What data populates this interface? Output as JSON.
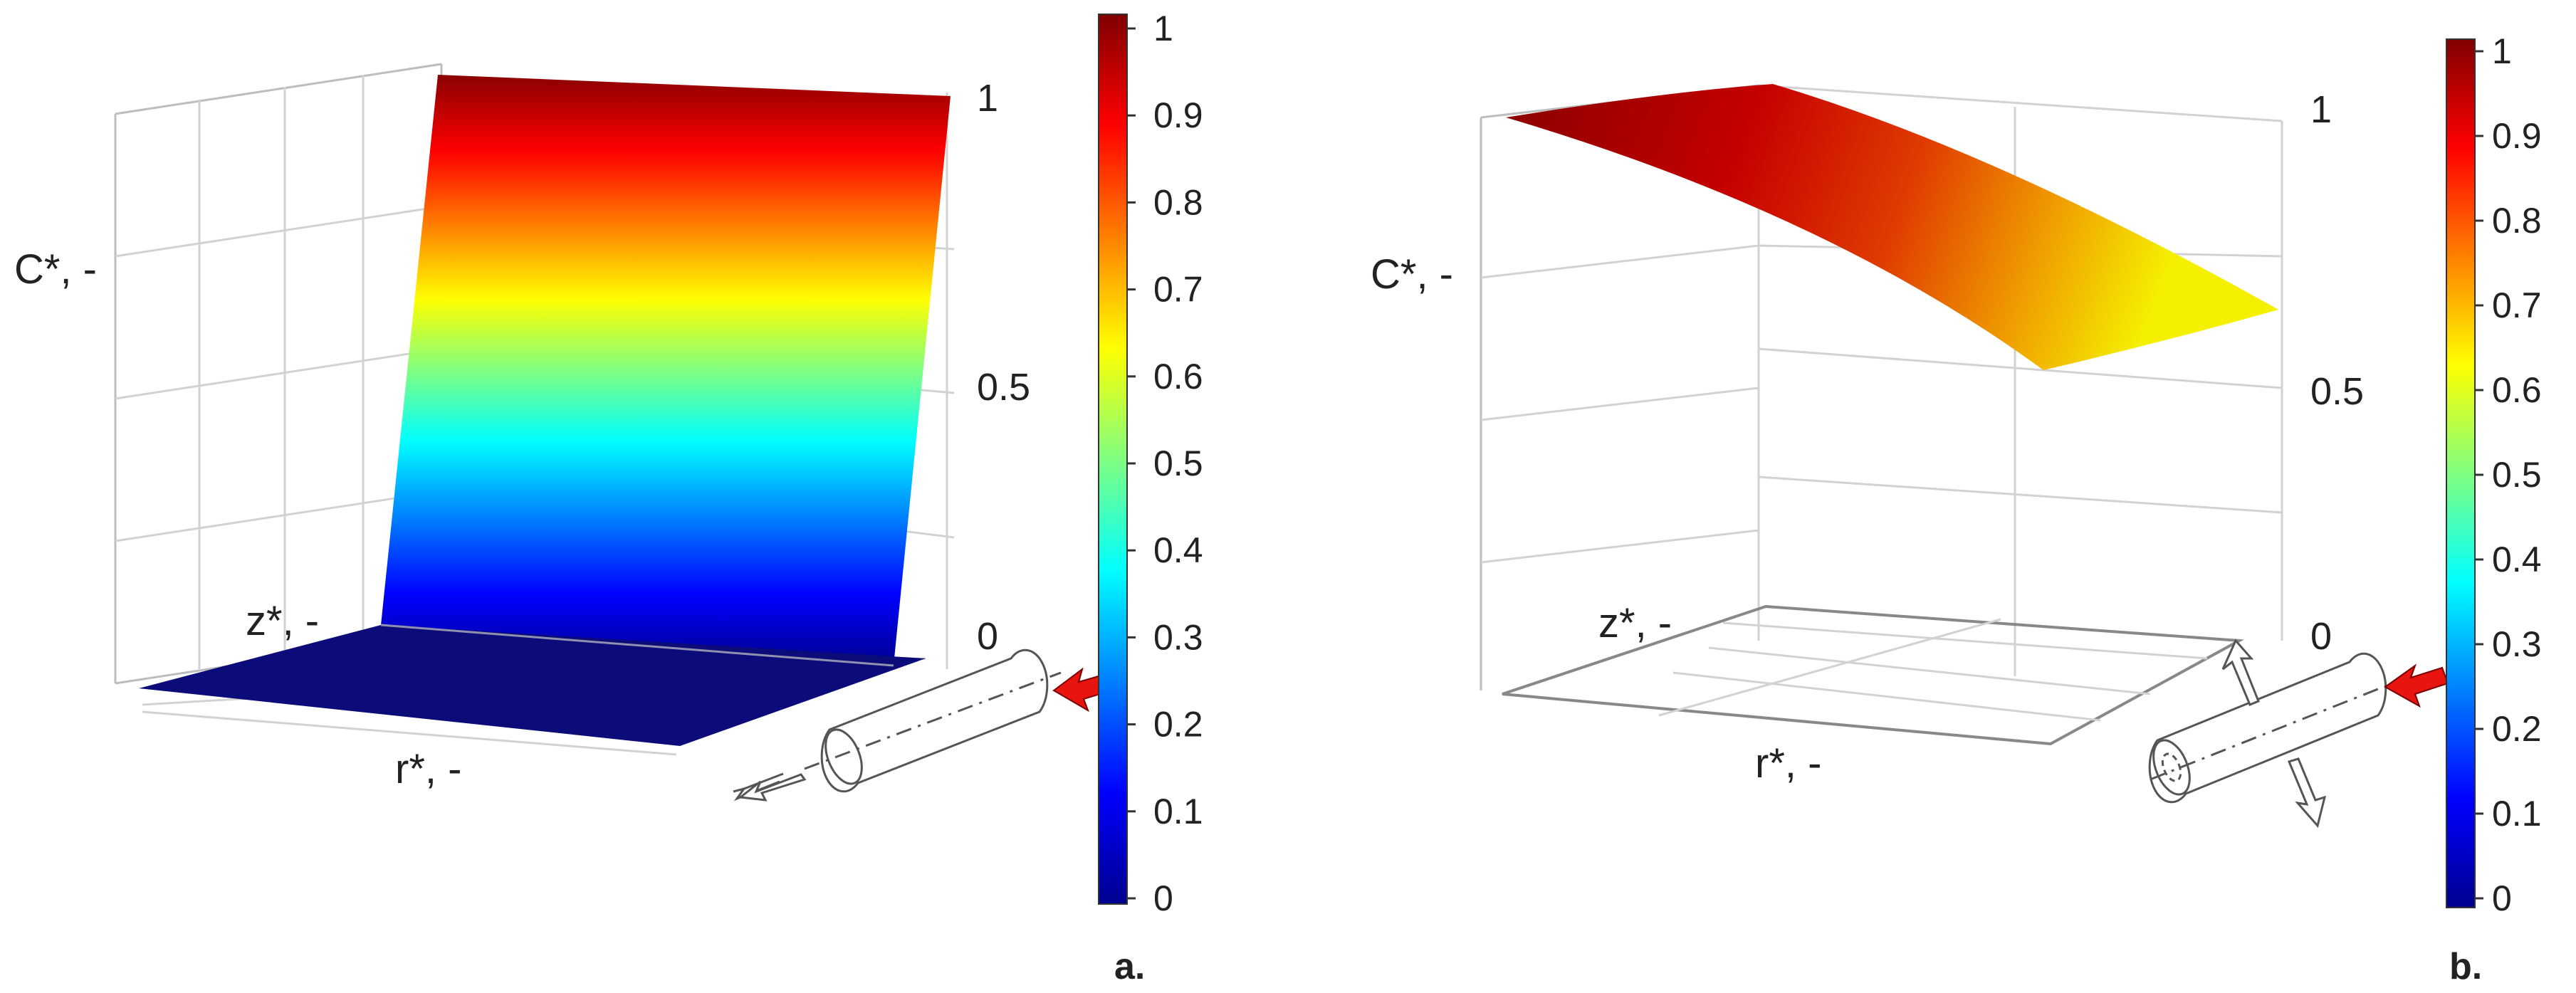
{
  "chart_data": [
    {
      "type": "surface",
      "panel_label": "a.",
      "zlabel": "C*, -",
      "xlabel": "r*, -",
      "ylabel": "z*, -",
      "z_ticks": [
        "0",
        "0.5",
        "1"
      ],
      "zlim": [
        0,
        1
      ],
      "colorbar": {
        "min": 0,
        "max": 1,
        "ticks": [
          "0",
          "0.1",
          "0.2",
          "0.3",
          "0.4",
          "0.5",
          "0.6",
          "0.7",
          "0.8",
          "0.9",
          "1"
        ]
      },
      "surface_profile": {
        "description_values": [
          0,
          0,
          1
        ],
        "front_edge_C": 0,
        "back_edge_C": 1
      }
    },
    {
      "type": "surface",
      "panel_label": "b.",
      "zlabel": "C*, -",
      "xlabel": "r*, -",
      "ylabel": "z*, -",
      "z_ticks": [
        "0",
        "0.5",
        "1"
      ],
      "zlim": [
        0,
        1
      ],
      "colorbar": {
        "min": 0,
        "max": 1,
        "ticks": [
          "0",
          "0.1",
          "0.2",
          "0.3",
          "0.4",
          "0.5",
          "0.6",
          "0.7",
          "0.8",
          "0.9",
          "1"
        ]
      },
      "surface_profile": {
        "max_C": 1,
        "min_C": 0.67
      }
    }
  ],
  "colors": {
    "colormap": [
      "#00008f",
      "#0000ff",
      "#0080ff",
      "#00ffff",
      "#80ff80",
      "#ffff00",
      "#ff8000",
      "#ff0000",
      "#800000"
    ],
    "arrow_red": "#e8140f"
  }
}
